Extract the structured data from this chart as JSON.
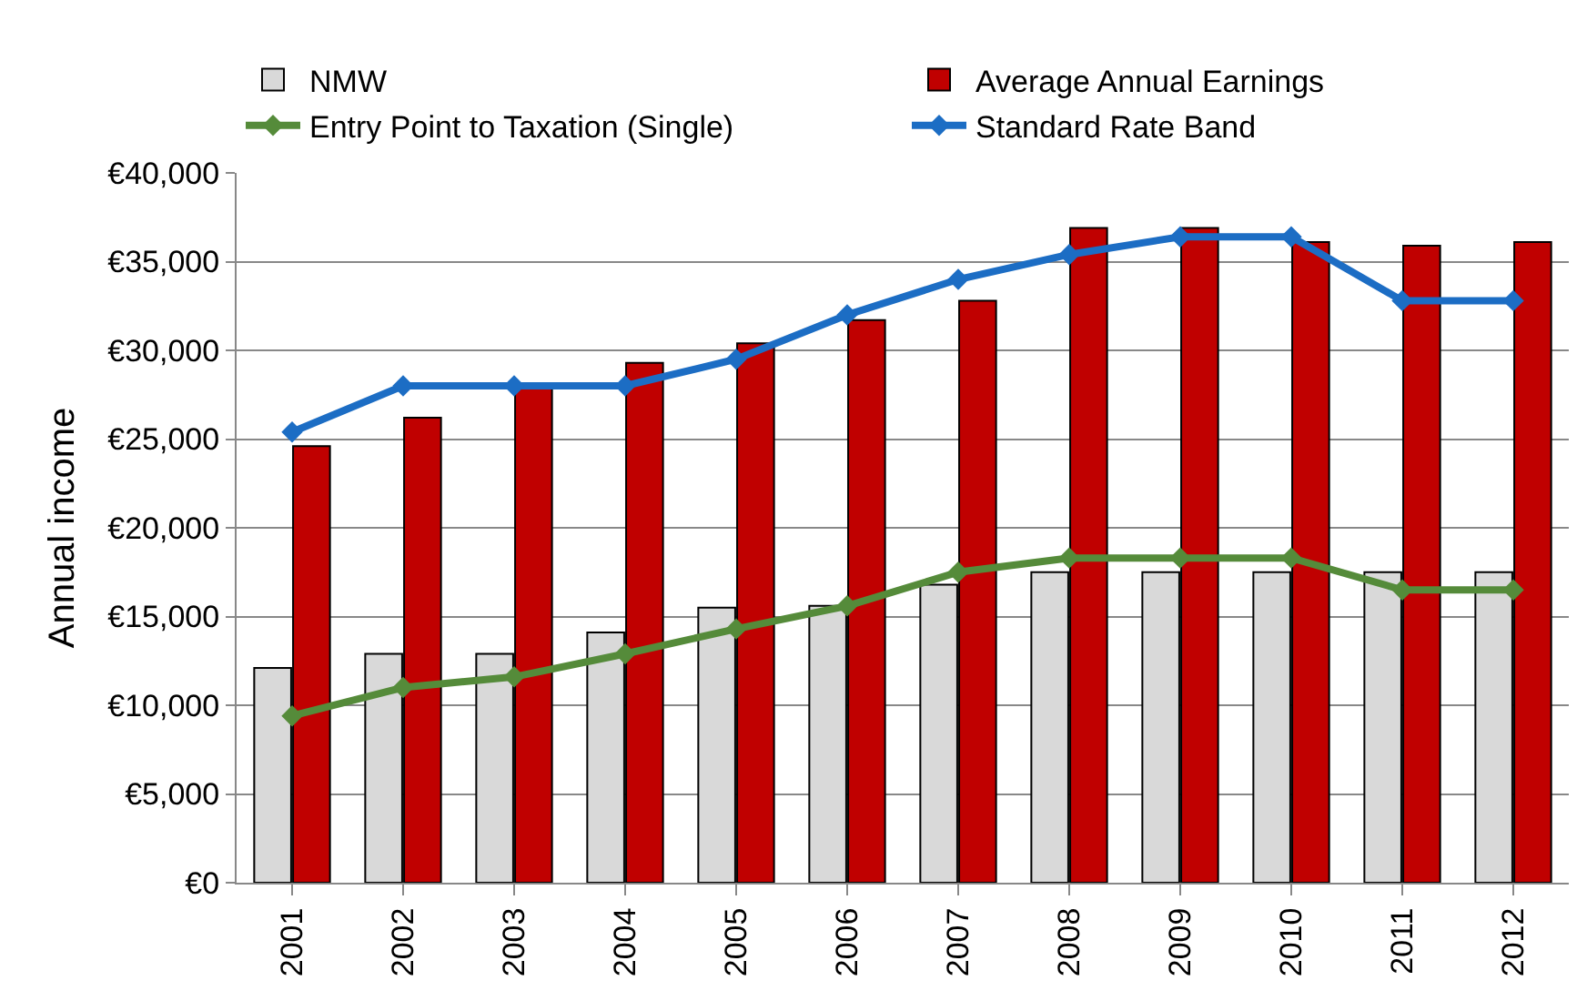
{
  "chart_data": {
    "type": "bar",
    "ylabel": "Annual income",
    "categories": [
      "2001",
      "2002",
      "2003",
      "2004",
      "2005",
      "2006",
      "2007",
      "2008",
      "2009",
      "2010",
      "2011",
      "2012"
    ],
    "series": [
      {
        "name": "NMW",
        "color": "#d9d9d9",
        "values": [
          12100,
          12900,
          12900,
          14100,
          15500,
          15600,
          16800,
          17500,
          17500,
          17500,
          17500,
          17500
        ]
      },
      {
        "name": "Average Annual Earnings",
        "color": "#c00000",
        "values": [
          24600,
          26200,
          28000,
          29300,
          30400,
          31700,
          32800,
          36900,
          36900,
          36100,
          35900,
          36100
        ]
      },
      {
        "name": "Entry Point to Taxation (Single)",
        "type": "line",
        "color": "#558b3a",
        "marker": "diamond",
        "values": [
          9400,
          11000,
          11600,
          12900,
          14300,
          15600,
          17500,
          18300,
          18300,
          18300,
          16500,
          16500
        ]
      },
      {
        "name": "Standard Rate Band",
        "type": "line",
        "color": "#1c6dc4",
        "marker": "diamond",
        "values": [
          25400,
          28000,
          28000,
          28000,
          29500,
          32000,
          34000,
          35400,
          36400,
          36400,
          32800,
          32800
        ]
      }
    ],
    "ylim": [
      0,
      40000
    ],
    "yticks": [
      {
        "value": 0,
        "label": "€0"
      },
      {
        "value": 5000,
        "label": "€5,000"
      },
      {
        "value": 10000,
        "label": "€10,000"
      },
      {
        "value": 15000,
        "label": "€15,000"
      },
      {
        "value": 20000,
        "label": "€20,000"
      },
      {
        "value": 25000,
        "label": "€25,000"
      },
      {
        "value": 30000,
        "label": "€30,000"
      },
      {
        "value": 35000,
        "label": "€35,000"
      },
      {
        "value": 40000,
        "label": "€40,000"
      }
    ],
    "grid": "y",
    "legend": "top"
  }
}
